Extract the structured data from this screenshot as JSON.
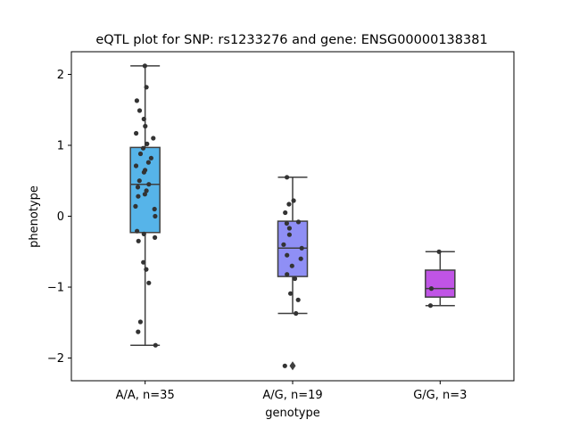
{
  "chart_data": {
    "type": "box",
    "title": "eQTL plot for SNP: rs1233276 and gene: ENSG00000138381",
    "xlabel": "genotype",
    "ylabel": "phenotype",
    "ylim": [
      -2.32,
      2.32
    ],
    "yticks": [
      -2,
      -1,
      0,
      1,
      2
    ],
    "ytick_labels": [
      "−2",
      "−1",
      "0",
      "1",
      "2"
    ],
    "grid": false,
    "groups": [
      {
        "label": "A/A, n=35",
        "color": "#56b4e9",
        "box": {
          "q1": -0.23,
          "median": 0.45,
          "q3": 0.97,
          "whisker_low": -1.82,
          "whisker_high": 2.12
        },
        "outliers": [],
        "points": [
          2.12,
          1.82,
          1.63,
          1.49,
          1.37,
          1.27,
          1.17,
          1.1,
          1.02,
          0.96,
          0.88,
          0.82,
          0.76,
          0.71,
          0.65,
          0.5,
          0.45,
          0.41,
          0.36,
          0.31,
          0.28,
          0.14,
          0.1,
          0.0,
          -0.21,
          -0.25,
          -0.3,
          -0.35,
          -0.65,
          -0.75,
          -0.94,
          -1.49,
          -1.63,
          -1.82,
          0.62
        ]
      },
      {
        "label": "A/G, n=19",
        "color": "#8f8ff5",
        "box": {
          "q1": -0.85,
          "median": -0.45,
          "q3": -0.07,
          "whisker_low": -1.37,
          "whisker_high": 0.55
        },
        "outliers": [
          -2.11
        ],
        "points": [
          0.55,
          0.22,
          0.17,
          0.05,
          -0.08,
          -0.17,
          -0.26,
          -0.4,
          -0.45,
          -0.55,
          -0.6,
          -0.7,
          -0.82,
          -0.88,
          -1.09,
          -1.18,
          -1.37,
          -2.11,
          -0.1
        ]
      },
      {
        "label": "G/G, n=3",
        "color": "#c054e6",
        "box": {
          "q1": -1.14,
          "median": -1.02,
          "q3": -0.76,
          "whisker_low": -1.26,
          "whisker_high": -0.5
        },
        "outliers": [],
        "points": [
          -0.5,
          -1.02,
          -1.26
        ]
      }
    ]
  }
}
